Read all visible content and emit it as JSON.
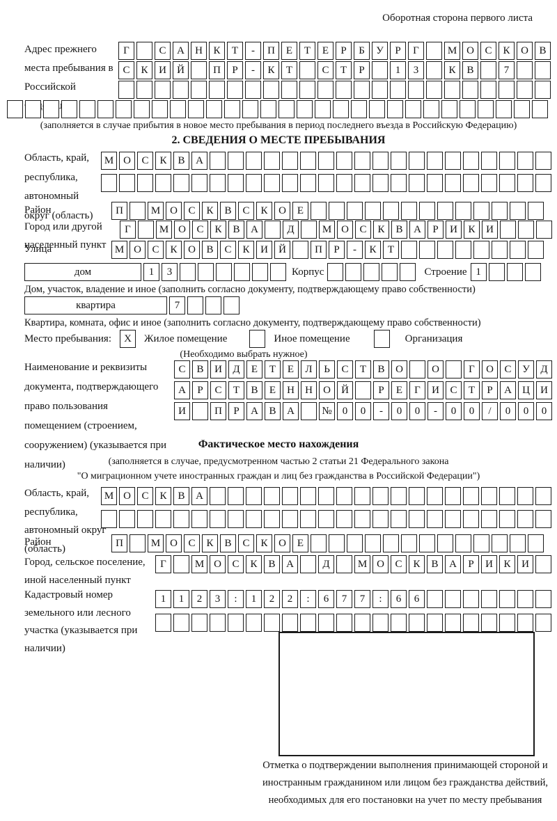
{
  "header": {
    "note": "Оборотная сторона первого листа"
  },
  "prev_address": {
    "label": "Адрес прежнего места пребывания в Российской Федерации",
    "rows": [
      {
        "count": 24,
        "value": "Г САНКТ-ПЕТЕРБУРГ МОСКОВ"
      },
      {
        "count": 24,
        "value": "СКИЙ ПР-КТ СТР 13 КВ 7"
      },
      {
        "count": 24,
        "value": ""
      },
      {
        "count": 30,
        "value": ""
      }
    ],
    "note": "(заполняется в случае прибытия в новое место пребывания в период последнего въезда в Российскую Федерацию)"
  },
  "section2": {
    "title": "2. СВЕДЕНИЯ О МЕСТЕ ПРЕБЫВАНИЯ",
    "region": {
      "label": "Область, край, республика, автономный округ (область)",
      "rows": [
        {
          "count": 25,
          "value": "МОСКВА"
        },
        {
          "count": 25,
          "value": ""
        }
      ]
    },
    "district": {
      "label": "Район",
      "row": {
        "count": 24,
        "value": "П МОСКВСКОЕ"
      }
    },
    "city": {
      "label": "Город или другой населенный пункт",
      "row": {
        "count": 24,
        "value": "Г МОСКВА Д МОСКВАРИКИ"
      }
    },
    "street": {
      "label": "Улица",
      "row": {
        "count": 24,
        "value": "МОСКОВСКИЙ ПР-КТ"
      }
    },
    "house": {
      "box_label": "дом",
      "row": {
        "count": 8,
        "value": "13"
      },
      "korpus_label": "Корпус",
      "korpus_row": {
        "count": 5,
        "value": ""
      },
      "stroenie_label": "Строение",
      "stroenie_row": {
        "count": 4,
        "value": "1"
      },
      "note": "Дом, участок, владение и иное (заполнить согласно документу, подтверждающему право собственности)"
    },
    "apartment": {
      "box_label": "квартира",
      "row": {
        "count": 4,
        "value": "7"
      },
      "note": "Квартира, комната, офис и иное (заполнить согласно документу, подтверждающему право собственности)"
    },
    "stay_type": {
      "label": "Место пребывания:",
      "options": [
        {
          "label": "Жилое помещение",
          "mark": "X"
        },
        {
          "label": "Иное помещение",
          "mark": ""
        },
        {
          "label": "Организация",
          "mark": ""
        }
      ],
      "note": "(Необходимо выбрать нужное)"
    },
    "document": {
      "label": "Наименование и реквизиты документа, подтверждающего право пользования помещением (строением, сооружением) (указывается при наличии)",
      "rows": [
        {
          "count": 21,
          "value": "СВИДЕТЕЛЬСТВО О ГОСУД"
        },
        {
          "count": 21,
          "value": "АРСТВЕННОЙ РЕГИСТРАЦИ"
        },
        {
          "count": 21,
          "value": "И ПРАВА №00-00-00/000"
        }
      ]
    }
  },
  "fact_location": {
    "title": "Фактическое место нахождения",
    "note_line1": "(заполняется в случае, предусмотренном частью 2 статьи 21 Федерального закона",
    "note_line2": "\"О миграционном учете иностранных граждан и лиц без гражданства в Российской Федерации\")",
    "region": {
      "label": "Область, край, республика, автономный округ (область)",
      "rows": [
        {
          "count": 25,
          "value": "МОСКВА"
        },
        {
          "count": 25,
          "value": ""
        }
      ]
    },
    "district": {
      "label": "Район",
      "row": {
        "count": 24,
        "value": "П МОСКВСКОЕ"
      }
    },
    "city": {
      "label": "Город, сельское поселение, иной населенный пункт",
      "row": {
        "count": 22,
        "value": "Г МОСКВА Д МОСКВАРИКИ"
      }
    },
    "cadastre": {
      "label": "Кадастровый номер земельного или лесного участка (указывается при наличии)",
      "rows": [
        {
          "count": 22,
          "value": "1123:122:677:66"
        },
        {
          "count": 22,
          "value": ""
        }
      ]
    },
    "stamp_note": "Отметка о подтверждении выполнения принимающей стороной и иностранным гражданином или лицом без гражданства действий, необходимых для его постановки на учет по месту пребывания"
  },
  "colors": {
    "ink": "#1a1a1a",
    "paper": "#ffffff"
  }
}
